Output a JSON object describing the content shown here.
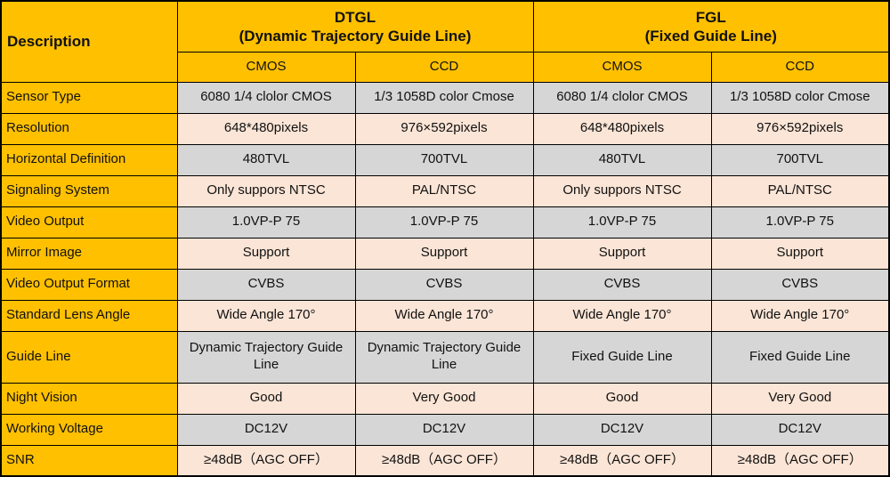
{
  "table": {
    "description_header": "Description",
    "groups": [
      {
        "abbr": "DTGL",
        "full": "(Dynamic Trajectory Guide Line)"
      },
      {
        "abbr": "FGL",
        "full": "(Fixed Guide Line)"
      }
    ],
    "sub_headers": [
      "CMOS",
      "CCD",
      "CMOS",
      "CCD"
    ],
    "rows": [
      {
        "label": "Sensor Type",
        "shade": "gray",
        "values": [
          "6080 1/4 clolor CMOS",
          "1/3 1058D color Cmose",
          "6080 1/4 clolor CMOS",
          "1/3 1058D color Cmose"
        ]
      },
      {
        "label": "Resolution",
        "shade": "pink",
        "values": [
          "648*480pixels",
          "976×592pixels",
          "648*480pixels",
          "976×592pixels"
        ]
      },
      {
        "label": "Horizontal Definition",
        "shade": "gray",
        "values": [
          "480TVL",
          "700TVL",
          "480TVL",
          "700TVL"
        ]
      },
      {
        "label": "Signaling System",
        "shade": "pink",
        "values": [
          "Only suppors NTSC",
          "PAL/NTSC",
          "Only suppors NTSC",
          "PAL/NTSC"
        ]
      },
      {
        "label": "Video Output",
        "shade": "gray",
        "values": [
          "1.0VP-P 75",
          "1.0VP-P 75",
          "1.0VP-P 75",
          "1.0VP-P 75"
        ]
      },
      {
        "label": "Mirror Image",
        "shade": "pink",
        "values": [
          "Support",
          "Support",
          "Support",
          "Support"
        ]
      },
      {
        "label": "Video Output Format",
        "shade": "gray",
        "values": [
          "CVBS",
          "CVBS",
          "CVBS",
          "CVBS"
        ]
      },
      {
        "label": "Standard Lens Angle",
        "shade": "pink",
        "values": [
          "Wide Angle 170°",
          "Wide Angle 170°",
          "Wide Angle 170°",
          "Wide Angle 170°"
        ]
      },
      {
        "label": "Guide Line",
        "shade": "gray",
        "values": [
          "Dynamic Trajectory Guide Line",
          "Dynamic Trajectory Guide Line",
          "Fixed Guide Line",
          "Fixed Guide Line"
        ]
      },
      {
        "label": "Night Vision",
        "shade": "pink",
        "values": [
          "Good",
          "Very Good",
          "Good",
          "Very Good"
        ]
      },
      {
        "label": "Working Voltage",
        "shade": "gray",
        "values": [
          "DC12V",
          "DC12V",
          "DC12V",
          "DC12V"
        ]
      },
      {
        "label": "SNR",
        "shade": "pink",
        "values": [
          "≥48dB（AGC OFF）",
          "≥48dB（AGC OFF）",
          "≥48dB（AGC OFF）",
          "≥48dB（AGC OFF）"
        ]
      }
    ],
    "colors": {
      "header_yellow": "#FFC000",
      "row_gray": "#D6D6D6",
      "row_pink": "#FBE5D6",
      "border": "#000000"
    }
  }
}
